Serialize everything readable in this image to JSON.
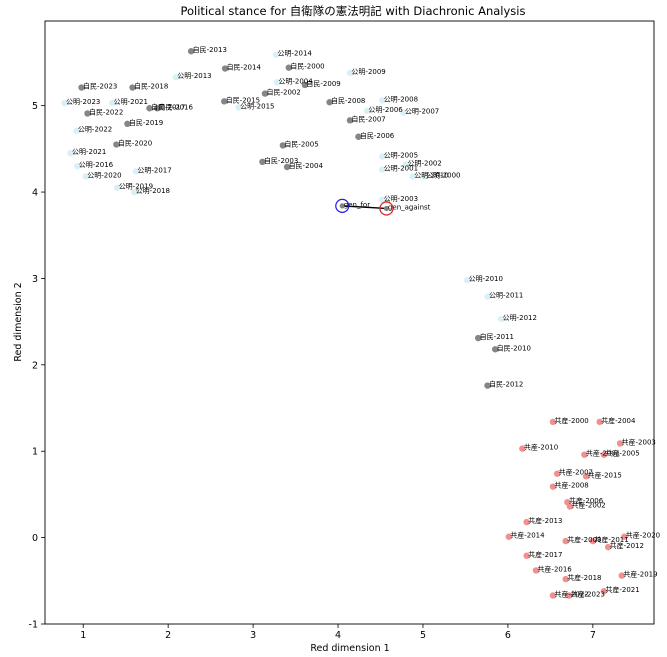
{
  "chart_data": {
    "type": "scatter",
    "title": "Political stance for 自衛隊の憲法明記 with Diachronic Analysis",
    "xlabel": "Red dimension 1",
    "ylabel": "Red dimension 2",
    "xlim": [
      0.55,
      7.72
    ],
    "ylim": [
      -1.0,
      5.98
    ],
    "xticks": [
      1,
      2,
      3,
      4,
      5,
      6,
      7
    ],
    "yticks": [
      -1,
      0,
      1,
      2,
      3,
      4,
      5
    ],
    "grid": false,
    "colors": {
      "jimin": "#808080",
      "komei": "#d6f0f5",
      "kyosan": "#f08a8a",
      "for_ring": "#1f1fdd",
      "against_ring": "#dd1f1f",
      "line": "#000000"
    },
    "series": [
      {
        "key": "jimin",
        "points": [
          {
            "label": "自民-2013",
            "x": 2.27,
            "y": 5.63
          },
          {
            "label": "自民-2014",
            "x": 2.67,
            "y": 5.43
          },
          {
            "label": "自民-2000",
            "x": 3.42,
            "y": 5.44
          },
          {
            "label": "自民-2009",
            "x": 3.61,
            "y": 5.24
          },
          {
            "label": "自民-2002",
            "x": 3.14,
            "y": 5.14
          },
          {
            "label": "自民-2023",
            "x": 0.98,
            "y": 5.21
          },
          {
            "label": "自民-2018",
            "x": 1.58,
            "y": 5.21
          },
          {
            "label": "自民-2015",
            "x": 2.66,
            "y": 5.05
          },
          {
            "label": "自民-2017",
            "x": 1.78,
            "y": 4.97
          },
          {
            "label": "自民-2016",
            "x": 1.87,
            "y": 4.97
          },
          {
            "label": "自民-2022",
            "x": 1.05,
            "y": 4.91
          },
          {
            "label": "自民-2019",
            "x": 1.52,
            "y": 4.79
          },
          {
            "label": "自民-2020",
            "x": 1.39,
            "y": 4.55
          },
          {
            "label": "自民-2008",
            "x": 3.9,
            "y": 5.04
          },
          {
            "label": "自民-2007",
            "x": 4.14,
            "y": 4.83
          },
          {
            "label": "自民-2006",
            "x": 4.24,
            "y": 4.64
          },
          {
            "label": "自民-2005",
            "x": 3.35,
            "y": 4.54
          },
          {
            "label": "自民-2003",
            "x": 3.11,
            "y": 4.35
          },
          {
            "label": "自民-2004",
            "x": 3.4,
            "y": 4.29
          },
          {
            "label": "自民-2011",
            "x": 5.65,
            "y": 2.31
          },
          {
            "label": "自民-2010",
            "x": 5.85,
            "y": 2.18
          },
          {
            "label": "自民-2012",
            "x": 5.76,
            "y": 1.76
          }
        ]
      },
      {
        "key": "komei",
        "points": [
          {
            "label": "公明-2014",
            "x": 3.27,
            "y": 5.59
          },
          {
            "label": "公明-2009",
            "x": 4.14,
            "y": 5.38
          },
          {
            "label": "公明-2004",
            "x": 3.28,
            "y": 5.27
          },
          {
            "label": "公明-2013",
            "x": 2.09,
            "y": 5.33
          },
          {
            "label": "公明-2023",
            "x": 0.78,
            "y": 5.03
          },
          {
            "label": "公明-2021",
            "x": 1.34,
            "y": 5.03
          },
          {
            "label": "公明-2015",
            "x": 2.83,
            "y": 4.98
          },
          {
            "label": "公明-2008",
            "x": 4.52,
            "y": 5.06
          },
          {
            "label": "公明-2006",
            "x": 4.34,
            "y": 4.94
          },
          {
            "label": "公明-2007",
            "x": 4.77,
            "y": 4.92
          },
          {
            "label": "公明-2022",
            "x": 0.92,
            "y": 4.71
          },
          {
            "label": "公明-2021",
            "x": 0.85,
            "y": 4.45
          },
          {
            "label": "公明-2016",
            "x": 0.93,
            "y": 4.3
          },
          {
            "label": "公明-2017",
            "x": 1.62,
            "y": 4.24
          },
          {
            "label": "公明-2020",
            "x": 1.03,
            "y": 4.18
          },
          {
            "label": "公明-2019",
            "x": 1.4,
            "y": 4.05
          },
          {
            "label": "公明-2018",
            "x": 1.6,
            "y": 4.0
          },
          {
            "label": "公明-2005",
            "x": 4.52,
            "y": 4.41
          },
          {
            "label": "公明-2001",
            "x": 4.52,
            "y": 4.26
          },
          {
            "label": "公明-2002",
            "x": 4.8,
            "y": 4.32
          },
          {
            "label": "公明-2010",
            "x": 4.88,
            "y": 4.18
          },
          {
            "label": "公明-2000",
            "x": 5.02,
            "y": 4.18
          },
          {
            "label": "公明-2003",
            "x": 4.52,
            "y": 3.91
          },
          {
            "label": "公明-2010",
            "x": 5.52,
            "y": 2.98
          },
          {
            "label": "公明-2011",
            "x": 5.76,
            "y": 2.79
          },
          {
            "label": "公明-2012",
            "x": 5.92,
            "y": 2.53
          }
        ]
      },
      {
        "key": "kyosan",
        "points": [
          {
            "label": "共産-2000",
            "x": 6.53,
            "y": 1.34
          },
          {
            "label": "共産-2004",
            "x": 7.08,
            "y": 1.34
          },
          {
            "label": "共産-2003",
            "x": 7.32,
            "y": 1.09
          },
          {
            "label": "共産-2010",
            "x": 6.17,
            "y": 1.03
          },
          {
            "label": "共産-2001",
            "x": 6.9,
            "y": 0.96
          },
          {
            "label": "共産-2005",
            "x": 7.13,
            "y": 0.96
          },
          {
            "label": "共産-2007",
            "x": 6.58,
            "y": 0.74
          },
          {
            "label": "共産-2015",
            "x": 6.92,
            "y": 0.71
          },
          {
            "label": "共産-2008",
            "x": 6.53,
            "y": 0.59
          },
          {
            "label": "共産-2006",
            "x": 6.7,
            "y": 0.41
          },
          {
            "label": "共産-2002",
            "x": 6.73,
            "y": 0.36
          },
          {
            "label": "共産-2013",
            "x": 6.22,
            "y": 0.18
          },
          {
            "label": "共産-2014",
            "x": 6.01,
            "y": 0.01
          },
          {
            "label": "共産-2009",
            "x": 6.68,
            "y": -0.04
          },
          {
            "label": "共産-2011",
            "x": 7.0,
            "y": -0.04
          },
          {
            "label": "共産-2020",
            "x": 7.37,
            "y": 0.01
          },
          {
            "label": "共産-2012",
            "x": 7.18,
            "y": -0.11
          },
          {
            "label": "共産-2017",
            "x": 6.22,
            "y": -0.21
          },
          {
            "label": "共産-2016",
            "x": 6.33,
            "y": -0.38
          },
          {
            "label": "共産-2018",
            "x": 6.68,
            "y": -0.48
          },
          {
            "label": "共産-2019",
            "x": 7.34,
            "y": -0.44
          },
          {
            "label": "共産-2021",
            "x": 7.13,
            "y": -0.62
          },
          {
            "label": "共産-2022",
            "x": 6.53,
            "y": -0.67
          },
          {
            "label": "共産-2023",
            "x": 6.72,
            "y": -0.67
          }
        ]
      }
    ],
    "anchors": [
      {
        "key": "for",
        "label": "gen_for",
        "x": 4.05,
        "y": 3.84
      },
      {
        "key": "against",
        "label": "gen_against",
        "x": 4.57,
        "y": 3.81
      }
    ]
  }
}
